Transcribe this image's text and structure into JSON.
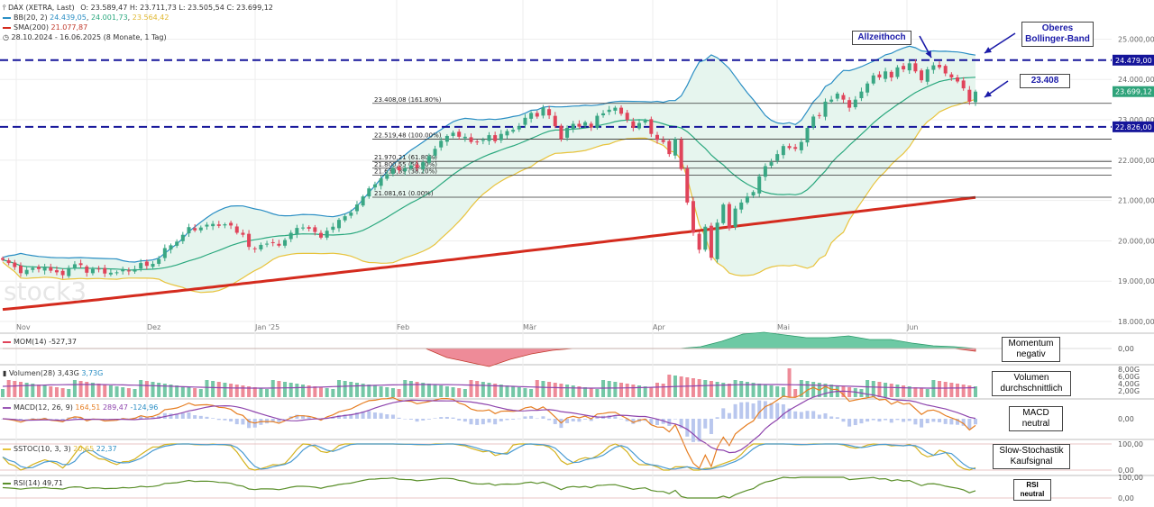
{
  "header": {
    "symbol": "DAX (XETRA, Last)",
    "ohlc": "O: 23.589,47  H: 23.711,73  L: 23.505,54  C: 23.699,12",
    "bb_label": "BB(20, 2)",
    "bb_values": [
      "24.439,05",
      "24.001,73",
      "23.564,42"
    ],
    "sma_label": "SMA(200)",
    "sma_value": "21.077,87",
    "range": "28.10.2024 - 16.06.2025  (8 Monate, 1 Tag)"
  },
  "watermark": "stock3",
  "colors": {
    "up": "#3aa784",
    "down": "#e0445a",
    "bb_upper": "#2a8ec4",
    "bb_mid": "#2aa87e",
    "bb_lower": "#e8c33c",
    "bb_fill": "#e6f5ee",
    "sma": "#d42b1e",
    "dash": "#15159a",
    "mom_neg": "#ee8b98",
    "mom_pos": "#6dc9a4"
  },
  "chart_data": [
    {
      "type": "candlestick",
      "title": "DAX (XETRA, Last)",
      "ylim": [
        17800,
        25300
      ],
      "y_ticks": [
        "25.000,00",
        "24.000,00",
        "23.000,00",
        "22.000,00",
        "21.000,00",
        "20.000,00",
        "19.000,00",
        "18.000,00"
      ],
      "x_tick_labels": [
        "Nov",
        "Dez",
        "Jan '25",
        "Feb",
        "Mär",
        "Apr",
        "Mai",
        "Jun"
      ],
      "closes": [
        19530,
        19450,
        19350,
        19200,
        19280,
        19330,
        19300,
        19360,
        19260,
        19220,
        19150,
        19330,
        19420,
        19400,
        19210,
        19300,
        19290,
        19190,
        19210,
        19220,
        19300,
        19250,
        19300,
        19450,
        19380,
        19430,
        19550,
        19820,
        19890,
        19980,
        20150,
        20340,
        20260,
        20330,
        20400,
        20420,
        20370,
        20410,
        20380,
        20200,
        20150,
        19850,
        19800,
        19900,
        19930,
        19950,
        19880,
        20020,
        20200,
        20320,
        20330,
        20300,
        20220,
        20080,
        20250,
        20350,
        20520,
        20610,
        20700,
        20900,
        21100,
        21300,
        21400,
        21550,
        21650,
        21800,
        21750,
        21800,
        21870,
        21810,
        21950,
        22100,
        22280,
        22480,
        22600,
        22680,
        22580,
        22580,
        22450,
        22440,
        22500,
        22620,
        22470,
        22650,
        22720,
        22750,
        22840,
        23050,
        23170,
        23080,
        23300,
        23110,
        22840,
        22520,
        22800,
        22900,
        22830,
        22940,
        22810,
        23100,
        23160,
        23250,
        23300,
        23150,
        23000,
        22800,
        22920,
        22980,
        22650,
        22500,
        22450,
        22150,
        22520,
        21780,
        20950,
        20200,
        19780,
        20350,
        19580,
        20450,
        20900,
        20310,
        20800,
        20950,
        21100,
        21210,
        21600,
        21850,
        21950,
        22150,
        22350,
        22300,
        22280,
        22450,
        22800,
        23080,
        23100,
        23450,
        23500,
        23650,
        23500,
        23300,
        23500,
        23700,
        23900,
        24100,
        24050,
        24200,
        24050,
        24300,
        24250,
        24400,
        24200,
        23980,
        24250,
        24350,
        24300,
        24150,
        24050,
        23950,
        23780,
        23450,
        23699
      ],
      "last_close": 23699.12,
      "fibonacci": [
        {
          "label": "23.408,08 (161.80%)",
          "value": 23408.08
        },
        {
          "label": "22.519,48 (100.00%)",
          "value": 22519.48
        },
        {
          "label": "21.970,21 (61.80%)",
          "value": 21970.21
        },
        {
          "label": "21.800,55 (50.00%)",
          "value": 21800.55
        },
        {
          "label": "21.630,89 (38.20%)",
          "value": 21630.89
        },
        {
          "label": "21.081,61 (0.00%)",
          "value": 21081.61
        }
      ],
      "fib_visible_labels": [
        "23.408,08 (161.80%)",
        "22.519,48 (100.00%)",
        "21.970,21 (61.80%)",
        "21.800,55 (50.00%)",
        "21.630,89 (38.20%)",
        "21.081,61 (0.00%)"
      ],
      "dashed_levels": [
        {
          "label": "24.479,00",
          "value": 24479.0
        },
        {
          "label": "22.826,00",
          "value": 22826.0
        }
      ],
      "price_tag": "23.699,12",
      "sma200": {
        "start": 18300,
        "end": 21077.87
      },
      "bb_upper_value": "24.439,05"
    },
    {
      "type": "area",
      "title": "MOM(14)",
      "value_label": "-527,37",
      "ticks": [
        "0,00"
      ],
      "trend_description_points": [
        0,
        0,
        0,
        0,
        0,
        0,
        0,
        0,
        0,
        0,
        0,
        0,
        0,
        0,
        0,
        0,
        0,
        0,
        0,
        0,
        0,
        -1,
        -1.5,
        -2,
        -1.2,
        -0.6,
        -0.2,
        0,
        0,
        0,
        0,
        0,
        0,
        0.2,
        0.8,
        1.6,
        1.8,
        1.5,
        1.2,
        1.2,
        1.4,
        1.0,
        1.0,
        0.6,
        0.3,
        0.2,
        -0.3
      ]
    },
    {
      "type": "bar",
      "title": "Volumen(28)",
      "value_labels": [
        "3,43G",
        "3,73G"
      ],
      "ticks": [
        "8,00G",
        "6,00G",
        "4,00G",
        "2,00G"
      ]
    },
    {
      "type": "line",
      "title": "MACD(12, 26, 9)",
      "value_labels": [
        "164,51",
        "289,47",
        "-124,96"
      ],
      "ticks": [
        "0,00"
      ]
    },
    {
      "type": "line",
      "title": "SSTOC(10, 3, 3)",
      "value_labels": [
        "20,65",
        "22,37"
      ],
      "ticks": [
        "100,00",
        "0,00"
      ]
    },
    {
      "type": "line",
      "title": "RSI(14)",
      "value_labels": [
        "49,71"
      ],
      "ticks": [
        "100,00",
        "0,00"
      ]
    }
  ],
  "annotations": {
    "allzeithoch": "Allzeithoch",
    "oberes_bb": [
      "Oberes",
      "Bollinger-Band"
    ],
    "price_23408": "23.408",
    "momentum": [
      "Momentum",
      "negativ"
    ],
    "volumen": [
      "Volumen",
      "durchschnittlich"
    ],
    "macd": [
      "MACD",
      "neutral"
    ],
    "stoch": [
      "Slow-Stochastik",
      "Kaufsignal"
    ],
    "rsi": [
      "RSI",
      "neutral"
    ]
  }
}
